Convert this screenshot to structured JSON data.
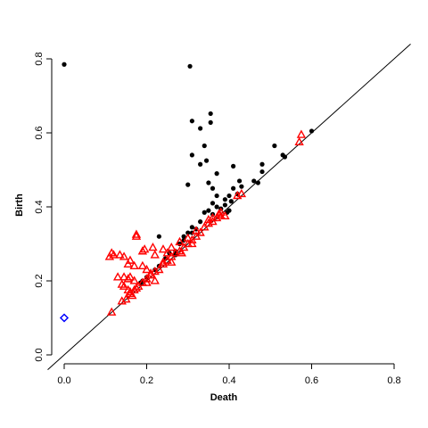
{
  "chart_data": {
    "type": "scatter",
    "xlabel": "Death",
    "ylabel": "Birth",
    "xlim": [
      0.0,
      0.8
    ],
    "ylim": [
      0.0,
      0.8
    ],
    "x_ticks": [
      "0.0",
      "0.2",
      "0.4",
      "0.6",
      "0.8"
    ],
    "y_ticks": [
      "0.0",
      "0.2",
      "0.4",
      "0.6",
      "0.8"
    ],
    "grid": false,
    "reference_line": {
      "slope": 1,
      "intercept": 0,
      "color": "#000000"
    },
    "series": [
      {
        "marker": "circle-filled",
        "color": "#000000",
        "points": [
          [
            0.0,
            0.785
          ],
          [
            0.305,
            0.78
          ],
          [
            0.31,
            0.632
          ],
          [
            0.355,
            0.652
          ],
          [
            0.355,
            0.628
          ],
          [
            0.33,
            0.612
          ],
          [
            0.34,
            0.565
          ],
          [
            0.345,
            0.525
          ],
          [
            0.31,
            0.54
          ],
          [
            0.33,
            0.515
          ],
          [
            0.37,
            0.49
          ],
          [
            0.41,
            0.51
          ],
          [
            0.35,
            0.465
          ],
          [
            0.3,
            0.46
          ],
          [
            0.36,
            0.45
          ],
          [
            0.51,
            0.565
          ],
          [
            0.53,
            0.54
          ],
          [
            0.535,
            0.535
          ],
          [
            0.6,
            0.605
          ],
          [
            0.48,
            0.515
          ],
          [
            0.48,
            0.495
          ],
          [
            0.46,
            0.47
          ],
          [
            0.47,
            0.465
          ],
          [
            0.425,
            0.47
          ],
          [
            0.43,
            0.455
          ],
          [
            0.41,
            0.45
          ],
          [
            0.42,
            0.435
          ],
          [
            0.4,
            0.43
          ],
          [
            0.37,
            0.43
          ],
          [
            0.39,
            0.42
          ],
          [
            0.405,
            0.415
          ],
          [
            0.39,
            0.405
          ],
          [
            0.38,
            0.395
          ],
          [
            0.36,
            0.41
          ],
          [
            0.37,
            0.4
          ],
          [
            0.35,
            0.39
          ],
          [
            0.36,
            0.38
          ],
          [
            0.395,
            0.385
          ],
          [
            0.4,
            0.39
          ],
          [
            0.34,
            0.385
          ],
          [
            0.33,
            0.36
          ],
          [
            0.32,
            0.34
          ],
          [
            0.31,
            0.345
          ],
          [
            0.31,
            0.33
          ],
          [
            0.3,
            0.33
          ],
          [
            0.29,
            0.32
          ],
          [
            0.29,
            0.31
          ],
          [
            0.28,
            0.3
          ],
          [
            0.27,
            0.28
          ],
          [
            0.255,
            0.275
          ],
          [
            0.245,
            0.26
          ],
          [
            0.23,
            0.32
          ],
          [
            0.22,
            0.23
          ],
          [
            0.2,
            0.21
          ],
          [
            0.19,
            0.2
          ],
          [
            0.185,
            0.195
          ],
          [
            0.27,
            0.27
          ],
          [
            0.23,
            0.24
          ]
        ]
      },
      {
        "marker": "triangle-open",
        "color": "#ff0000",
        "points": [
          [
            0.575,
            0.595
          ],
          [
            0.57,
            0.575
          ],
          [
            0.43,
            0.435
          ],
          [
            0.42,
            0.43
          ],
          [
            0.39,
            0.375
          ],
          [
            0.38,
            0.375
          ],
          [
            0.37,
            0.37
          ],
          [
            0.36,
            0.36
          ],
          [
            0.35,
            0.355
          ],
          [
            0.34,
            0.345
          ],
          [
            0.33,
            0.33
          ],
          [
            0.32,
            0.32
          ],
          [
            0.31,
            0.31
          ],
          [
            0.3,
            0.3
          ],
          [
            0.29,
            0.29
          ],
          [
            0.28,
            0.28
          ],
          [
            0.27,
            0.275
          ],
          [
            0.26,
            0.265
          ],
          [
            0.25,
            0.255
          ],
          [
            0.24,
            0.245
          ],
          [
            0.23,
            0.23
          ],
          [
            0.22,
            0.225
          ],
          [
            0.21,
            0.215
          ],
          [
            0.2,
            0.205
          ],
          [
            0.19,
            0.195
          ],
          [
            0.18,
            0.185
          ],
          [
            0.17,
            0.175
          ],
          [
            0.16,
            0.165
          ],
          [
            0.15,
            0.15
          ],
          [
            0.14,
            0.145
          ],
          [
            0.115,
            0.115
          ],
          [
            0.175,
            0.325
          ],
          [
            0.175,
            0.32
          ],
          [
            0.195,
            0.285
          ],
          [
            0.19,
            0.28
          ],
          [
            0.215,
            0.29
          ],
          [
            0.22,
            0.27
          ],
          [
            0.24,
            0.285
          ],
          [
            0.26,
            0.29
          ],
          [
            0.25,
            0.275
          ],
          [
            0.12,
            0.27
          ],
          [
            0.11,
            0.265
          ],
          [
            0.115,
            0.275
          ],
          [
            0.135,
            0.27
          ],
          [
            0.145,
            0.265
          ],
          [
            0.16,
            0.255
          ],
          [
            0.155,
            0.245
          ],
          [
            0.17,
            0.24
          ],
          [
            0.19,
            0.24
          ],
          [
            0.2,
            0.23
          ],
          [
            0.16,
            0.21
          ],
          [
            0.145,
            0.21
          ],
          [
            0.13,
            0.21
          ],
          [
            0.155,
            0.205
          ],
          [
            0.17,
            0.2
          ],
          [
            0.14,
            0.19
          ],
          [
            0.145,
            0.185
          ],
          [
            0.155,
            0.175
          ],
          [
            0.16,
            0.17
          ],
          [
            0.165,
            0.16
          ],
          [
            0.175,
            0.18
          ],
          [
            0.21,
            0.22
          ],
          [
            0.24,
            0.25
          ],
          [
            0.28,
            0.305
          ],
          [
            0.3,
            0.315
          ],
          [
            0.31,
            0.3
          ],
          [
            0.32,
            0.335
          ],
          [
            0.35,
            0.365
          ],
          [
            0.36,
            0.37
          ],
          [
            0.375,
            0.38
          ],
          [
            0.38,
            0.385
          ],
          [
            0.285,
            0.275
          ],
          [
            0.26,
            0.25
          ],
          [
            0.22,
            0.2
          ],
          [
            0.2,
            0.195
          ]
        ]
      },
      {
        "marker": "diamond-open",
        "color": "#0000ff",
        "points": [
          [
            0.0,
            0.1
          ]
        ]
      }
    ]
  }
}
